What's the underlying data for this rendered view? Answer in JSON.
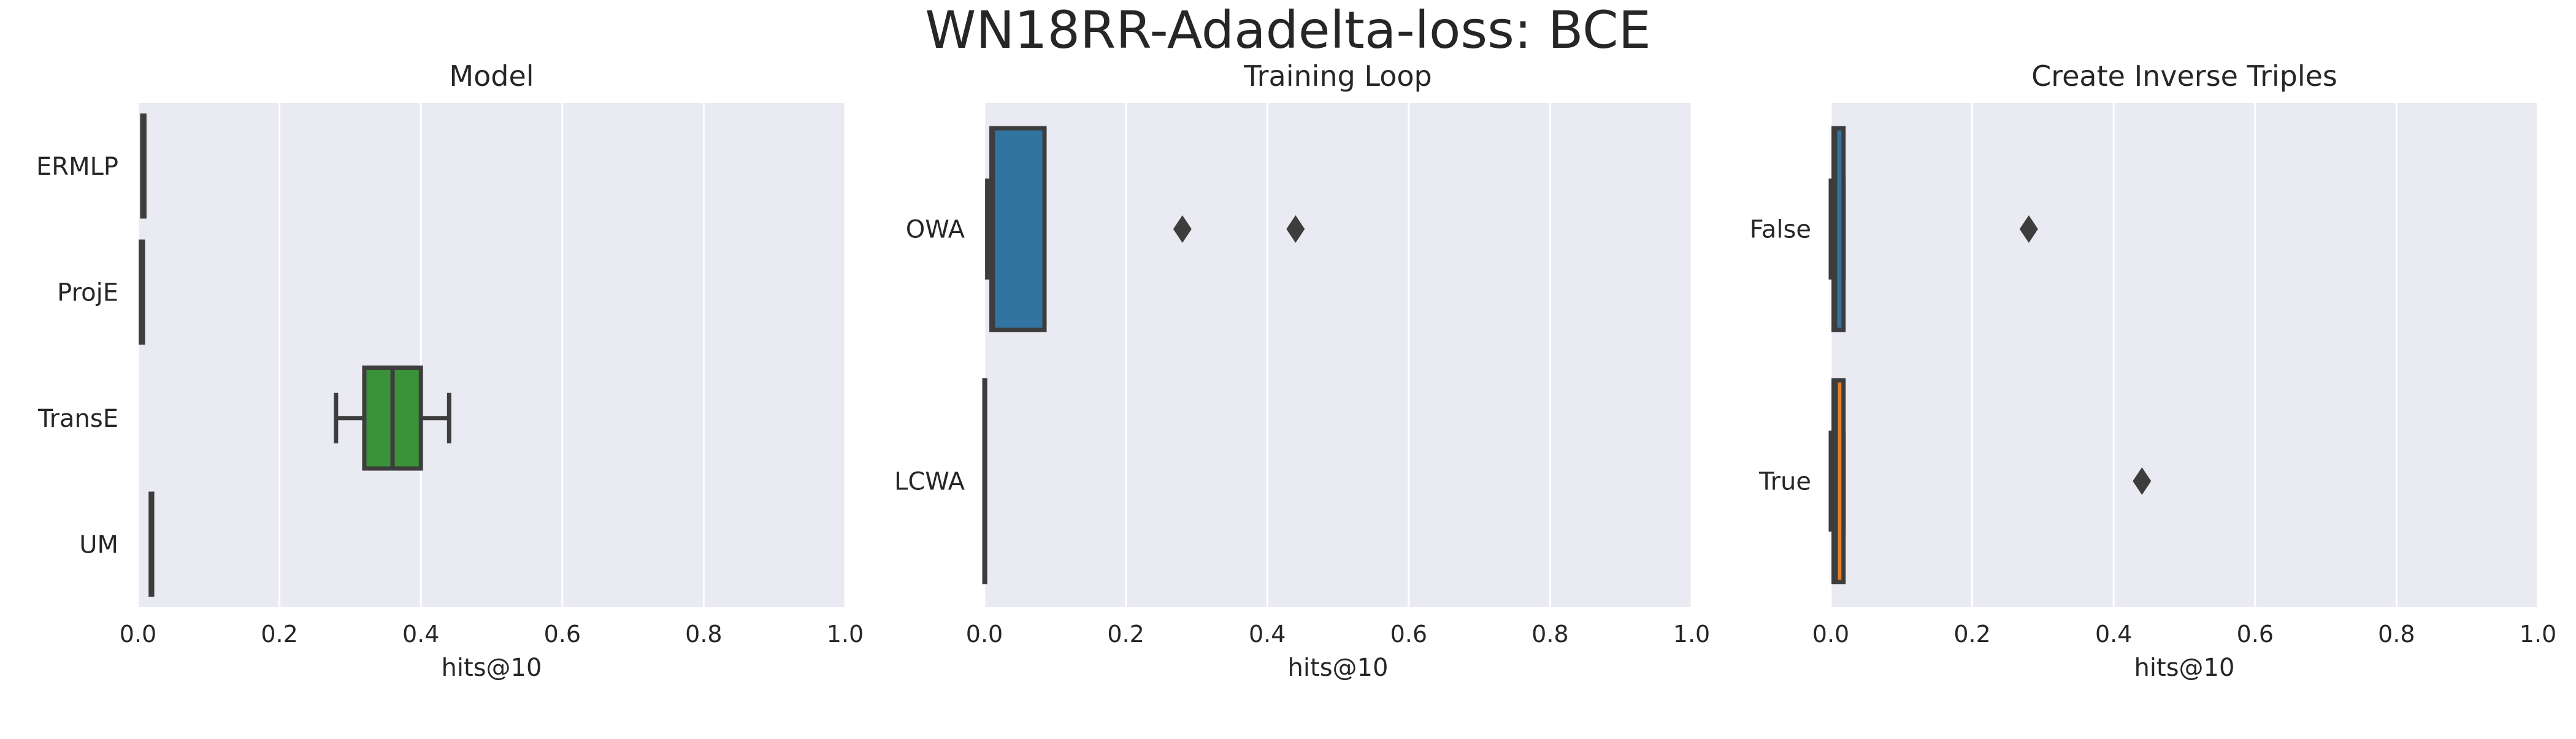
{
  "title": "WN18RR-Adadelta-loss: BCE",
  "chart_data": [
    {
      "type": "boxplot",
      "orientation": "horizontal",
      "title": "Model",
      "xlabel": "hits@10",
      "xlim": [
        0,
        1
      ],
      "xticks": [
        "0.0",
        "0.2",
        "0.4",
        "0.6",
        "0.8",
        "1.0"
      ],
      "categories": [
        "ERMLP",
        "ProjE",
        "TransE",
        "UM"
      ],
      "colors": [
        "#1f77b4",
        "#ff7f0e",
        "#2ca02c",
        "#d62728"
      ],
      "boxes": [
        {
          "label": "ERMLP",
          "whislo": 0.006,
          "q1": 0.006,
          "med": 0.007,
          "q3": 0.009,
          "whishi": 0.009,
          "fliers": []
        },
        {
          "label": "ProjE",
          "whislo": 0.004,
          "q1": 0.004,
          "med": 0.005,
          "q3": 0.007,
          "whishi": 0.007,
          "fliers": []
        },
        {
          "label": "TransE",
          "whislo": 0.28,
          "q1": 0.32,
          "med": 0.36,
          "q3": 0.4,
          "whishi": 0.44,
          "fliers": []
        },
        {
          "label": "UM",
          "whislo": 0.018,
          "q1": 0.018,
          "med": 0.019,
          "q3": 0.02,
          "whishi": 0.02,
          "fliers": []
        }
      ]
    },
    {
      "type": "boxplot",
      "orientation": "horizontal",
      "title": "Training Loop",
      "xlabel": "hits@10",
      "xlim": [
        0,
        1
      ],
      "xticks": [
        "0.0",
        "0.2",
        "0.4",
        "0.6",
        "0.8",
        "1.0"
      ],
      "categories": [
        "OWA",
        "LCWA"
      ],
      "colors": [
        "#1f77b4",
        "#ff7f0e"
      ],
      "boxes": [
        {
          "label": "OWA",
          "whislo": 0.004,
          "q1": 0.01,
          "med": 0.012,
          "q3": 0.085,
          "whishi": 0.085,
          "fliers": [
            0.28,
            0.44
          ]
        },
        {
          "label": "LCWA",
          "whislo": 0.0,
          "q1": 0.0,
          "med": 0.0,
          "q3": 0.001,
          "whishi": 0.001,
          "fliers": []
        }
      ]
    },
    {
      "type": "boxplot",
      "orientation": "horizontal",
      "title": "Create Inverse Triples",
      "xlabel": "hits@10",
      "xlim": [
        0,
        1
      ],
      "xticks": [
        "0.0",
        "0.2",
        "0.4",
        "0.6",
        "0.8",
        "1.0"
      ],
      "categories": [
        "False",
        "True"
      ],
      "colors": [
        "#1f77b4",
        "#ff7f0e"
      ],
      "boxes": [
        {
          "label": "False",
          "whislo": 0.0,
          "q1": 0.004,
          "med": 0.006,
          "q3": 0.018,
          "whishi": 0.018,
          "fliers": [
            0.28
          ]
        },
        {
          "label": "True",
          "whislo": 0.0,
          "q1": 0.004,
          "med": 0.007,
          "q3": 0.018,
          "whishi": 0.018,
          "fliers": [
            0.44
          ]
        }
      ]
    }
  ]
}
